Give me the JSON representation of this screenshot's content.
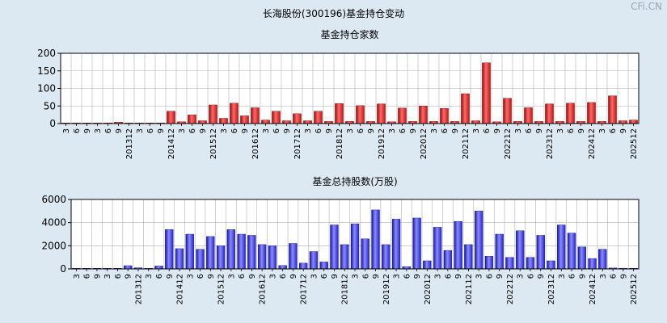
{
  "page": {
    "title": "长海股份(300196)基金持仓变动",
    "watermark": "CFi.CN"
  },
  "chart_data": [
    {
      "type": "bar",
      "title": "基金持仓家数",
      "ylim": [
        0,
        200
      ],
      "yticks": [
        0,
        50,
        100,
        150,
        200
      ],
      "bar_color": "#dd2a2a",
      "grid": true,
      "categories": [
        "3",
        "6",
        "9",
        "3",
        "6",
        "9",
        "201312",
        "3",
        "6",
        "9",
        "201412",
        "3",
        "6",
        "9",
        "201512",
        "3",
        "6",
        "9",
        "201612",
        "3",
        "6",
        "9",
        "201712",
        "3",
        "6",
        "9",
        "201812",
        "3",
        "6",
        "9",
        "201912",
        "3",
        "6",
        "9",
        "202012",
        "3",
        "6",
        "9",
        "202112",
        "3",
        "6",
        "9",
        "202212",
        "3",
        "6",
        "9",
        "202312",
        "3",
        "6",
        "9",
        "202412",
        "3",
        "6",
        "9",
        "202512"
      ],
      "values": [
        1,
        1,
        1,
        1,
        1,
        4,
        1,
        1,
        1,
        1,
        35,
        5,
        25,
        8,
        53,
        15,
        58,
        22,
        45,
        10,
        35,
        8,
        28,
        8,
        35,
        6,
        57,
        6,
        51,
        6,
        56,
        5,
        44,
        6,
        50,
        6,
        43,
        6,
        85,
        8,
        173,
        5,
        72,
        6,
        45,
        6,
        56,
        6,
        58,
        6,
        60,
        6,
        79,
        8,
        10
      ]
    },
    {
      "type": "bar",
      "title": "基金总持股数(万股)",
      "ylim": [
        0,
        6000
      ],
      "yticks": [
        0,
        2000,
        4000,
        6000
      ],
      "bar_color": "#3b3bdc",
      "grid": true,
      "categories": [
        "3",
        "6",
        "9",
        "3",
        "6",
        "9",
        "201312",
        "3",
        "6",
        "9",
        "201412",
        "3",
        "6",
        "9",
        "201512",
        "3",
        "6",
        "9",
        "201612",
        "3",
        "6",
        "9",
        "201712",
        "3",
        "6",
        "9",
        "201812",
        "3",
        "6",
        "9",
        "201912",
        "3",
        "6",
        "9",
        "202012",
        "3",
        "6",
        "9",
        "202112",
        "3",
        "6",
        "9",
        "202212",
        "3",
        "6",
        "9",
        "202312",
        "3",
        "6",
        "9",
        "202412",
        "3",
        "6",
        "9",
        "202512"
      ],
      "values": [
        20,
        30,
        20,
        30,
        20,
        280,
        100,
        30,
        250,
        3400,
        1750,
        3000,
        1700,
        2800,
        2000,
        3400,
        3000,
        2900,
        2100,
        2000,
        300,
        2200,
        500,
        1500,
        600,
        3800,
        2100,
        3900,
        2600,
        5100,
        2100,
        4300,
        200,
        4400,
        700,
        3600,
        1600,
        4100,
        2100,
        5000,
        1100,
        3000,
        1000,
        3300,
        1000,
        2900,
        700,
        3800,
        3100,
        1900,
        900,
        1700,
        80,
        60,
        40
      ]
    }
  ]
}
